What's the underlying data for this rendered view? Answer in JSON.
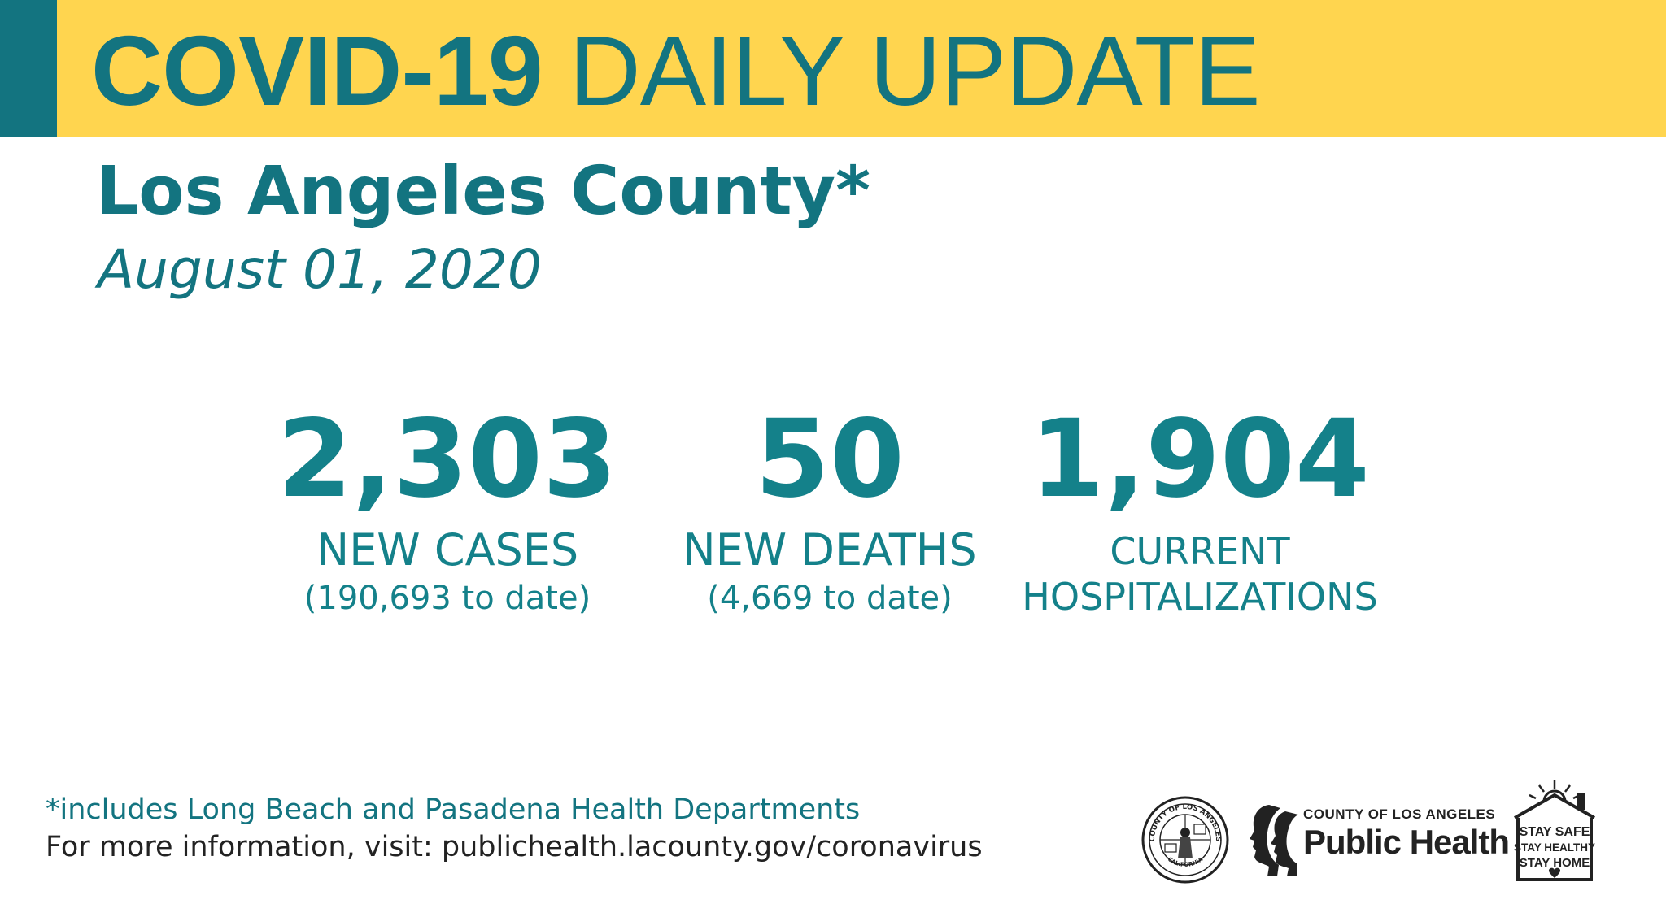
{
  "header": {
    "title_bold": "COVID-19",
    "title_rest": "DAILY UPDATE"
  },
  "county_title": "Los Angeles County*",
  "date": "August 01, 2020",
  "stats": {
    "new_cases": {
      "value": "2,303",
      "label": "NEW CASES",
      "sub": "(190,693 to date)"
    },
    "new_deaths": {
      "value": "50",
      "label": "NEW DEATHS",
      "sub": "(4,669 to date)"
    },
    "hospitalizations": {
      "value": "1,904",
      "label_line1": "CURRENT",
      "label_line2": "HOSPITALIZATIONS"
    }
  },
  "footer": {
    "footnote": "*includes Long Beach and Pasadena Health Departments",
    "more_info_prefix": "For more information, visit:",
    "more_info_url": "publichealth.lacounty.gov/coronavirus"
  },
  "logos": {
    "seal_ring_top": "COUNTY OF LOS ANGELES",
    "seal_ring_bottom": "CALIFORNIA",
    "public_health_top": "COUNTY OF LOS ANGELES",
    "public_health_main": "Public Health",
    "stay_line1": "STAY SAFE",
    "stay_line2": "STAY HEALTHY",
    "stay_line3": "STAY HOME"
  },
  "colors": {
    "header_band": "#ffd54f",
    "accent_teal": "#137480",
    "stat_teal": "#14818a"
  }
}
